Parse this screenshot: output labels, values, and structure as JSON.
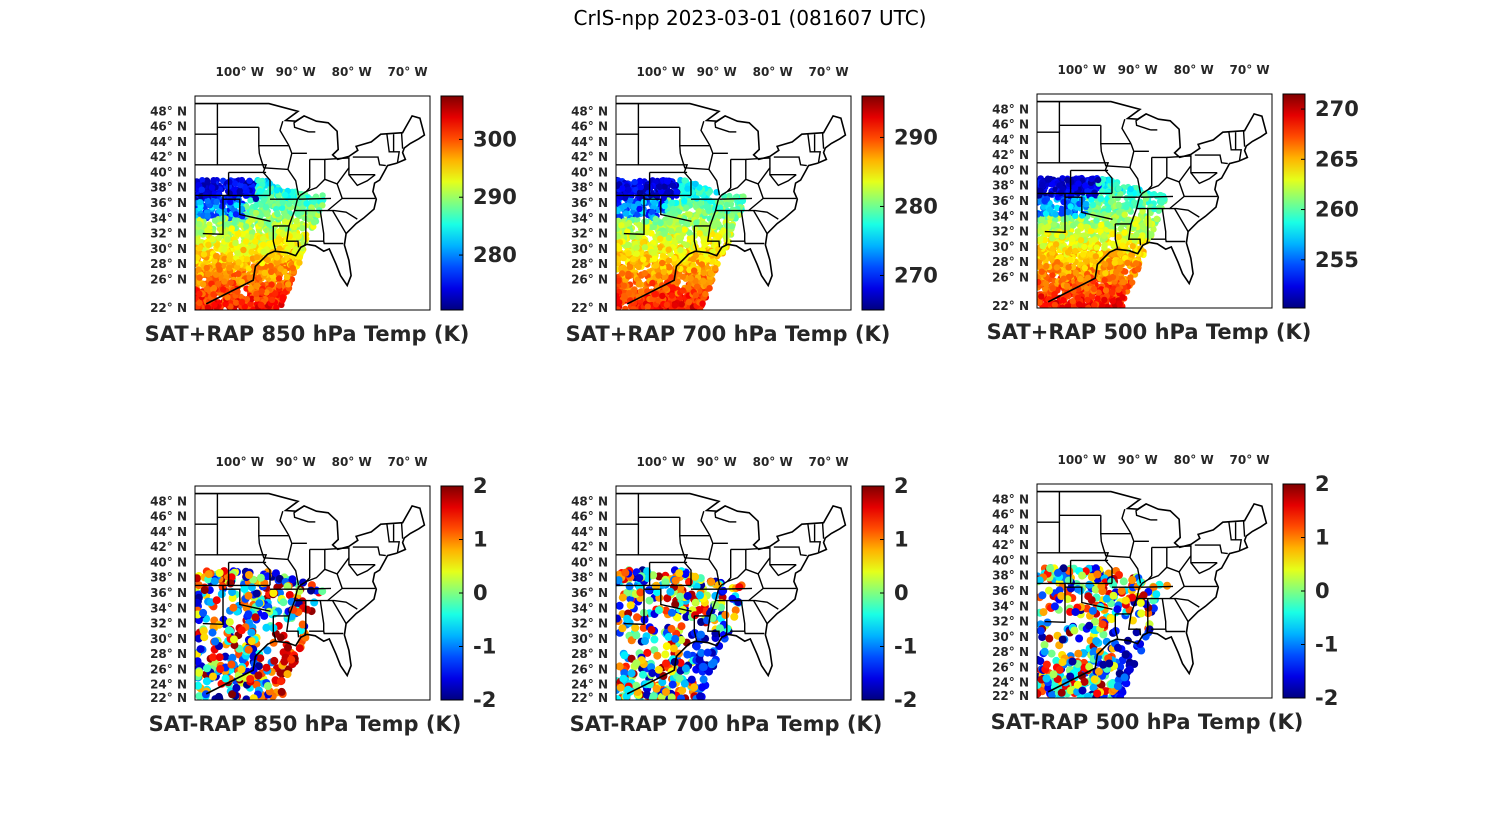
{
  "figure_title": "CrIS-npp 2023-03-01 (081607 UTC)",
  "colors": {
    "frame": "#000000",
    "text": "#262626"
  },
  "chart_data": [
    {
      "type": "scatter",
      "title": "SAT+RAP 850 hPa Temp (K)",
      "level": "850 hPa",
      "kind": "sum",
      "lon_ticks": [
        {
          "value": -100,
          "label": "100° W"
        },
        {
          "value": -90,
          "label": "90° W"
        },
        {
          "value": -80,
          "label": "80° W"
        },
        {
          "value": -70,
          "label": "70° W"
        }
      ],
      "lat_ticks": [
        {
          "value": 48,
          "label": "48° N"
        },
        {
          "value": 46,
          "label": "46° N"
        },
        {
          "value": 44,
          "label": "44° N"
        },
        {
          "value": 42,
          "label": "42° N"
        },
        {
          "value": 40,
          "label": "40° N"
        },
        {
          "value": 38,
          "label": "38° N"
        },
        {
          "value": 36,
          "label": "36° N"
        },
        {
          "value": 34,
          "label": "34° N"
        },
        {
          "value": 32,
          "label": "32° N"
        },
        {
          "value": 30,
          "label": "30° N"
        },
        {
          "value": 28,
          "label": "28° N"
        },
        {
          "value": 26,
          "label": "26° N"
        },
        {
          "value": 22,
          "label": "22° N"
        }
      ],
      "xlim": [
        -108,
        -66
      ],
      "ylim": [
        22,
        50
      ],
      "colorbar": {
        "range": [
          270.5,
          307.5
        ],
        "ticks": [
          280,
          290,
          300
        ],
        "tick_labels": [
          "280",
          "290",
          "300"
        ]
      }
    },
    {
      "type": "scatter",
      "title": "SAT+RAP 700 hPa Temp (K)",
      "level": "700 hPa",
      "kind": "sum",
      "lon_ticks": [
        {
          "value": -100,
          "label": "100° W"
        },
        {
          "value": -90,
          "label": "90° W"
        },
        {
          "value": -80,
          "label": "80° W"
        },
        {
          "value": -70,
          "label": "70° W"
        }
      ],
      "lat_ticks": [
        {
          "value": 48,
          "label": "48° N"
        },
        {
          "value": 46,
          "label": "46° N"
        },
        {
          "value": 44,
          "label": "44° N"
        },
        {
          "value": 42,
          "label": "42° N"
        },
        {
          "value": 40,
          "label": "40° N"
        },
        {
          "value": 38,
          "label": "38° N"
        },
        {
          "value": 36,
          "label": "36° N"
        },
        {
          "value": 34,
          "label": "34° N"
        },
        {
          "value": 32,
          "label": "32° N"
        },
        {
          "value": 30,
          "label": "30° N"
        },
        {
          "value": 28,
          "label": "28° N"
        },
        {
          "value": 26,
          "label": "26° N"
        },
        {
          "value": 22,
          "label": "22° N"
        }
      ],
      "xlim": [
        -108,
        -66
      ],
      "ylim": [
        22,
        50
      ],
      "colorbar": {
        "range": [
          265,
          296
        ],
        "ticks": [
          270,
          280,
          290
        ],
        "tick_labels": [
          "270",
          "280",
          "290"
        ]
      }
    },
    {
      "type": "scatter",
      "title": "SAT+RAP 500 hPa Temp (K)",
      "level": "500 hPa",
      "kind": "sum",
      "lon_ticks": [
        {
          "value": -100,
          "label": "100° W"
        },
        {
          "value": -90,
          "label": "90° W"
        },
        {
          "value": -80,
          "label": "80° W"
        },
        {
          "value": -70,
          "label": "70° W"
        }
      ],
      "lat_ticks": [
        {
          "value": 48,
          "label": "48° N"
        },
        {
          "value": 46,
          "label": "46° N"
        },
        {
          "value": 44,
          "label": "44° N"
        },
        {
          "value": 42,
          "label": "42° N"
        },
        {
          "value": 40,
          "label": "40° N"
        },
        {
          "value": 38,
          "label": "38° N"
        },
        {
          "value": 36,
          "label": "36° N"
        },
        {
          "value": 34,
          "label": "34° N"
        },
        {
          "value": 32,
          "label": "32° N"
        },
        {
          "value": 30,
          "label": "30° N"
        },
        {
          "value": 28,
          "label": "28° N"
        },
        {
          "value": 26,
          "label": "26° N"
        },
        {
          "value": 22,
          "label": "22° N"
        }
      ],
      "xlim": [
        -108,
        -66
      ],
      "ylim": [
        22,
        50
      ],
      "colorbar": {
        "range": [
          250.2,
          271.5
        ],
        "ticks": [
          255,
          260,
          265,
          270
        ],
        "tick_labels": [
          "255",
          "260",
          "265",
          "270"
        ]
      }
    },
    {
      "type": "scatter",
      "title": "SAT-RAP 850 hPa Temp (K)",
      "level": "850 hPa",
      "kind": "diff",
      "lon_ticks": [
        {
          "value": -100,
          "label": "100° W"
        },
        {
          "value": -90,
          "label": "90° W"
        },
        {
          "value": -80,
          "label": "80° W"
        },
        {
          "value": -70,
          "label": "70° W"
        }
      ],
      "lat_ticks": [
        {
          "value": 48,
          "label": "48° N"
        },
        {
          "value": 46,
          "label": "46° N"
        },
        {
          "value": 44,
          "label": "44° N"
        },
        {
          "value": 42,
          "label": "42° N"
        },
        {
          "value": 40,
          "label": "40° N"
        },
        {
          "value": 38,
          "label": "38° N"
        },
        {
          "value": 36,
          "label": "36° N"
        },
        {
          "value": 34,
          "label": "34° N"
        },
        {
          "value": 32,
          "label": "32° N"
        },
        {
          "value": 30,
          "label": "30° N"
        },
        {
          "value": 28,
          "label": "28° N"
        },
        {
          "value": 26,
          "label": "26° N"
        },
        {
          "value": 24,
          "label": "24° N"
        },
        {
          "value": 22,
          "label": "22° N"
        }
      ],
      "xlim": [
        -108,
        -66
      ],
      "ylim": [
        22,
        50
      ],
      "colorbar": {
        "range": [
          -2,
          2
        ],
        "ticks": [
          -2,
          -1,
          0,
          1,
          2
        ],
        "tick_labels": [
          "-2",
          "-1",
          "0",
          "1",
          "2"
        ]
      }
    },
    {
      "type": "scatter",
      "title": "SAT-RAP 700 hPa Temp (K)",
      "level": "700 hPa",
      "kind": "diff",
      "lon_ticks": [
        {
          "value": -100,
          "label": "100° W"
        },
        {
          "value": -90,
          "label": "90° W"
        },
        {
          "value": -80,
          "label": "80° W"
        },
        {
          "value": -70,
          "label": "70° W"
        }
      ],
      "lat_ticks": [
        {
          "value": 48,
          "label": "48° N"
        },
        {
          "value": 46,
          "label": "46° N"
        },
        {
          "value": 44,
          "label": "44° N"
        },
        {
          "value": 42,
          "label": "42° N"
        },
        {
          "value": 40,
          "label": "40° N"
        },
        {
          "value": 38,
          "label": "38° N"
        },
        {
          "value": 36,
          "label": "36° N"
        },
        {
          "value": 34,
          "label": "34° N"
        },
        {
          "value": 32,
          "label": "32° N"
        },
        {
          "value": 30,
          "label": "30° N"
        },
        {
          "value": 28,
          "label": "28° N"
        },
        {
          "value": 26,
          "label": "26° N"
        },
        {
          "value": 24,
          "label": "24° N"
        },
        {
          "value": 22,
          "label": "22° N"
        }
      ],
      "xlim": [
        -108,
        -66
      ],
      "ylim": [
        22,
        50
      ],
      "colorbar": {
        "range": [
          -2,
          2
        ],
        "ticks": [
          -2,
          -1,
          0,
          1,
          2
        ],
        "tick_labels": [
          "-2",
          "-1",
          "0",
          "1",
          "2"
        ]
      }
    },
    {
      "type": "scatter",
      "title": "SAT-RAP 500 hPa Temp (K)",
      "level": "500 hPa",
      "kind": "diff",
      "lon_ticks": [
        {
          "value": -100,
          "label": "100° W"
        },
        {
          "value": -90,
          "label": "90° W"
        },
        {
          "value": -80,
          "label": "80° W"
        },
        {
          "value": -70,
          "label": "70° W"
        }
      ],
      "lat_ticks": [
        {
          "value": 48,
          "label": "48° N"
        },
        {
          "value": 46,
          "label": "46° N"
        },
        {
          "value": 44,
          "label": "44° N"
        },
        {
          "value": 42,
          "label": "42° N"
        },
        {
          "value": 40,
          "label": "40° N"
        },
        {
          "value": 38,
          "label": "38° N"
        },
        {
          "value": 36,
          "label": "36° N"
        },
        {
          "value": 34,
          "label": "34° N"
        },
        {
          "value": 32,
          "label": "32° N"
        },
        {
          "value": 30,
          "label": "30° N"
        },
        {
          "value": 28,
          "label": "28° N"
        },
        {
          "value": 26,
          "label": "26° N"
        },
        {
          "value": 24,
          "label": "24° N"
        },
        {
          "value": 22,
          "label": "22° N"
        }
      ],
      "xlim": [
        -108,
        -66
      ],
      "ylim": [
        22,
        50
      ],
      "colorbar": {
        "range": [
          -2,
          2
        ],
        "ticks": [
          -2,
          -1,
          0,
          1,
          2
        ],
        "tick_labels": [
          "-2",
          "-1",
          "0",
          "1",
          "2"
        ]
      }
    }
  ]
}
